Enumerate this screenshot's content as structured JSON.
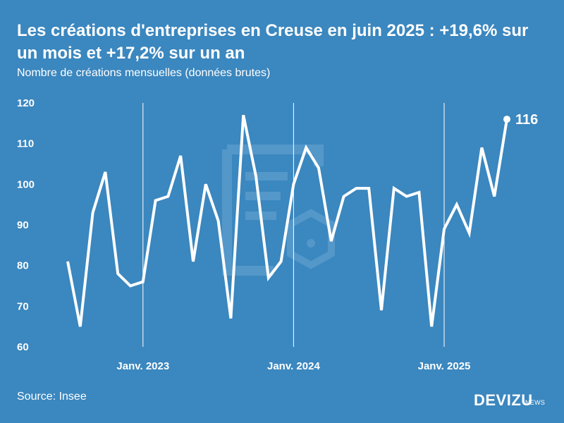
{
  "header": {
    "title": "Les créations d'entreprises en Creuse en juin 2025 : +19,6% sur un mois et +17,2% sur un an",
    "subtitle": "Nombre de créations mensuelles (données brutes)"
  },
  "footer": {
    "source": "Source: Insee",
    "brand": "DEVIZU",
    "brand_sub": "NEWS"
  },
  "colors": {
    "background": "#3b87bf",
    "line": "#ffffff",
    "watermark": "#6aa5d2"
  },
  "icons": {
    "watermark": "document-gear-icon"
  },
  "chart_data": {
    "type": "line",
    "title": "Les créations d'entreprises en Creuse en juin 2025 : +19,6% sur un mois et +17,2% sur un an",
    "subtitle": "Nombre de créations mensuelles (données brutes)",
    "x_start": "2022-07",
    "x_end": "2025-06",
    "xlabel": "",
    "ylabel": "",
    "ylim": [
      60,
      120
    ],
    "yticks": [
      60,
      70,
      80,
      90,
      100,
      110,
      120
    ],
    "x_ticks": [
      {
        "date": "2023-01",
        "label": "Janv. 2023"
      },
      {
        "date": "2024-01",
        "label": "Janv. 2024"
      },
      {
        "date": "2025-01",
        "label": "Janv. 2025"
      }
    ],
    "grid": "vertical lines at January",
    "legend": "none",
    "series": [
      {
        "values": [
          81,
          65,
          93,
          103,
          78,
          75,
          76,
          96,
          97,
          107,
          81,
          100,
          91,
          67,
          117,
          102,
          77,
          81,
          100,
          109,
          104,
          86,
          97,
          99,
          99,
          69,
          99,
          97,
          98,
          65,
          89,
          95,
          88,
          109,
          97,
          116
        ]
      }
    ],
    "end_label": "116"
  }
}
